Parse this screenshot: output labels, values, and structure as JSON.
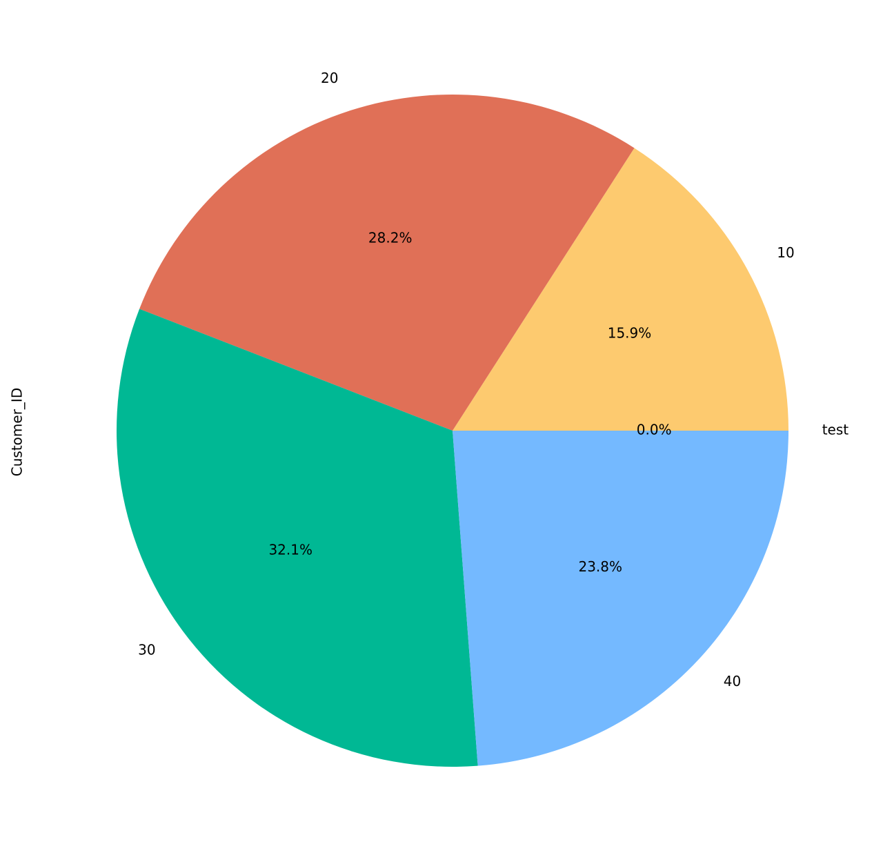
{
  "chart_data": {
    "type": "pie",
    "ylabel": "Customer_ID",
    "categories": [
      "10",
      "20",
      "30",
      "40",
      "test"
    ],
    "values": [
      15.9,
      28.2,
      32.1,
      23.8,
      0.0
    ],
    "value_labels": [
      "15.9%",
      "28.2%",
      "32.1%",
      "23.8%",
      "0.0%"
    ],
    "colors": [
      "#fdca6f",
      "#e07057",
      "#00b894",
      "#74b9ff",
      "#55a3e0"
    ]
  }
}
